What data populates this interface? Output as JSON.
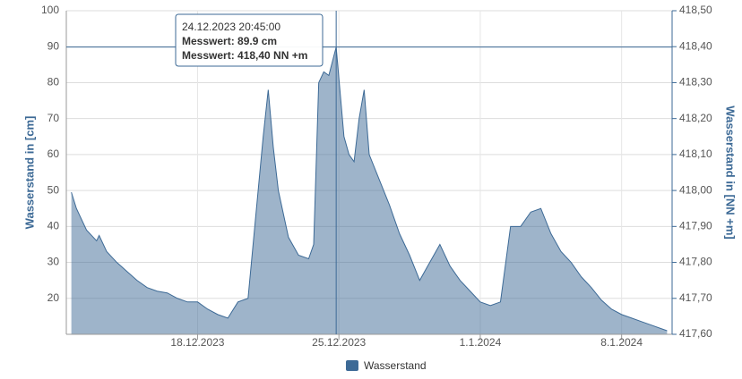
{
  "chart_data": {
    "type": "area",
    "y_label": "Wasserstand in [cm]",
    "y2_label": "Wasserstand in [NN +m]",
    "x": [
      "2023-12-11T18:00",
      "2023-12-12T00:00",
      "2023-12-12T12:00",
      "2023-12-13T00:00",
      "2023-12-13T03:00",
      "2023-12-13T12:00",
      "2023-12-14T00:00",
      "2023-12-14T12:00",
      "2023-12-15T00:00",
      "2023-12-15T12:00",
      "2023-12-16T00:00",
      "2023-12-16T12:00",
      "2023-12-17T00:00",
      "2023-12-17T12:00",
      "2023-12-18T00:00",
      "2023-12-18T12:00",
      "2023-12-19T00:00",
      "2023-12-19T12:00",
      "2023-12-20T00:00",
      "2023-12-20T12:00",
      "2023-12-21T00:00",
      "2023-12-21T06:00",
      "2023-12-21T12:00",
      "2023-12-21T18:00",
      "2023-12-22T00:00",
      "2023-12-22T12:00",
      "2023-12-23T00:00",
      "2023-12-23T12:00",
      "2023-12-23T18:00",
      "2023-12-24T00:00",
      "2023-12-24T06:00",
      "2023-12-24T12:00",
      "2023-12-24T20:45",
      "2023-12-25T06:00",
      "2023-12-25T12:00",
      "2023-12-25T18:00",
      "2023-12-26T00:00",
      "2023-12-26T06:00",
      "2023-12-26T12:00",
      "2023-12-27T00:00",
      "2023-12-27T12:00",
      "2023-12-28T00:00",
      "2023-12-28T12:00",
      "2023-12-29T00:00",
      "2023-12-29T12:00",
      "2023-12-30T00:00",
      "2023-12-30T12:00",
      "2023-12-31T00:00",
      "2023-12-31T12:00",
      "2024-01-01T00:00",
      "2024-01-01T12:00",
      "2024-01-02T00:00",
      "2024-01-02T12:00",
      "2024-01-03T00:00",
      "2024-01-03T12:00",
      "2024-01-04T00:00",
      "2024-01-04T12:00",
      "2024-01-05T00:00",
      "2024-01-05T12:00",
      "2024-01-06T00:00",
      "2024-01-06T12:00",
      "2024-01-07T00:00",
      "2024-01-07T12:00",
      "2024-01-08T00:00",
      "2024-01-08T12:00",
      "2024-01-09T00:00",
      "2024-01-09T12:00",
      "2024-01-10T00:00",
      "2024-01-10T06:00"
    ],
    "series": [
      {
        "name": "Wasserstand",
        "color": "#3d6a96",
        "values": [
          49.5,
          45,
          39,
          36,
          37.5,
          33,
          30,
          27.5,
          25,
          23,
          22,
          21.5,
          20,
          19,
          19,
          17,
          15.5,
          14.5,
          19,
          20,
          50,
          65,
          78,
          62,
          50,
          37,
          32,
          31,
          35,
          80,
          83,
          82,
          89.9,
          65,
          60,
          58,
          70,
          78,
          60,
          53,
          46,
          38,
          32,
          25,
          30,
          35,
          29,
          25,
          22,
          19,
          18,
          19,
          40,
          40,
          44,
          45,
          38,
          33,
          30,
          26,
          23,
          19.5,
          17,
          15.5,
          14.5,
          13.5,
          12.5,
          11.5,
          11
        ]
      }
    ],
    "xlim": [
      "2023-12-11T12:00",
      "2024-01-10T12:00"
    ],
    "xticks": [
      {
        "value": "2023-12-18T00:00",
        "label": "18.12.2023"
      },
      {
        "value": "2023-12-25T00:00",
        "label": "25.12.2023"
      },
      {
        "value": "2024-01-01T00:00",
        "label": "1.1.2024"
      },
      {
        "value": "2024-01-08T00:00",
        "label": "8.1.2024"
      }
    ],
    "ylim": [
      10,
      100
    ],
    "yticks": [
      20,
      30,
      40,
      50,
      60,
      70,
      80,
      90,
      100
    ],
    "y2lim": [
      417.6,
      418.5
    ],
    "y2ticks": [
      {
        "value": 417.6,
        "label": "417,60"
      },
      {
        "value": 417.7,
        "label": "417,70"
      },
      {
        "value": 417.8,
        "label": "417,80"
      },
      {
        "value": 417.9,
        "label": "417,90"
      },
      {
        "value": 418.0,
        "label": "418,00"
      },
      {
        "value": 418.1,
        "label": "418,10"
      },
      {
        "value": 418.2,
        "label": "418,20"
      },
      {
        "value": 418.3,
        "label": "418,30"
      },
      {
        "value": 418.4,
        "label": "418,40"
      },
      {
        "value": 418.5,
        "label": "418,50"
      }
    ],
    "grid": true,
    "tooltip": {
      "date": "24.12.2023 20:45:00",
      "lines": [
        "Messwert: 89.9 cm",
        "Messwert: 418,40 NN +m"
      ]
    }
  }
}
